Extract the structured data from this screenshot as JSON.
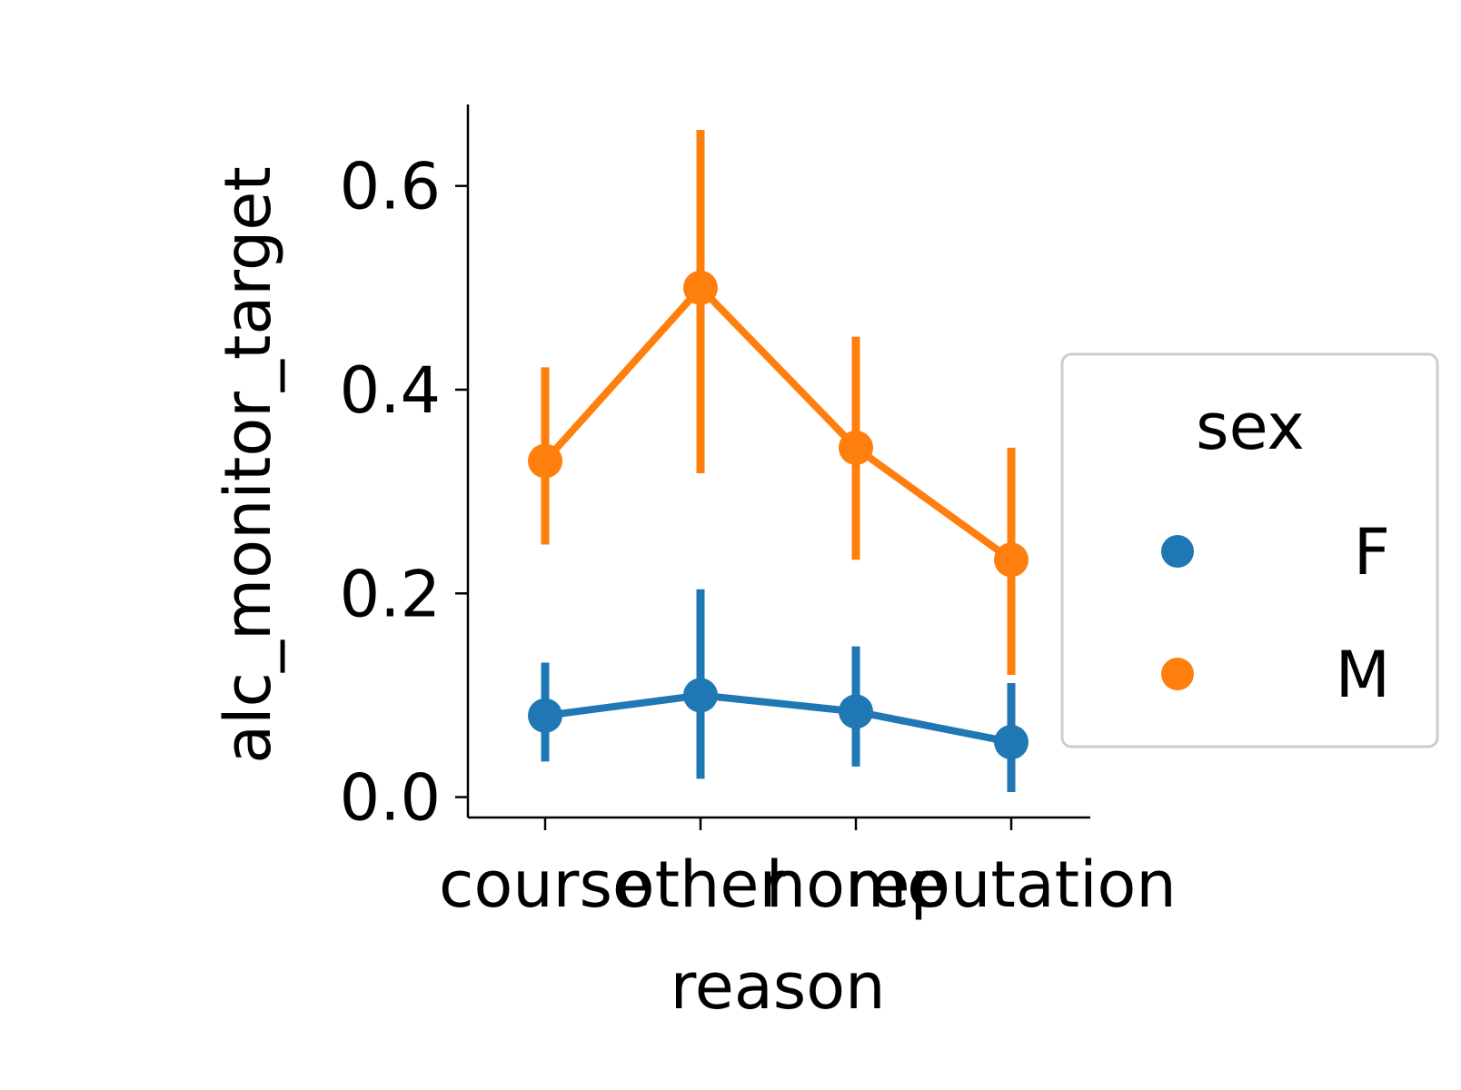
{
  "chart_data": {
    "type": "line",
    "xlabel": "reason",
    "ylabel": "alc_monitor_target",
    "categories": [
      "course",
      "other",
      "home",
      "reputation"
    ],
    "ylim": [
      -0.02,
      0.68
    ],
    "yticks": [
      0.0,
      0.2,
      0.4,
      0.6
    ],
    "ytick_labels": [
      "0.0",
      "0.2",
      "0.4",
      "0.6"
    ],
    "grid": false,
    "legend": {
      "title": "sex",
      "placement": "right"
    },
    "series": [
      {
        "name": "F",
        "color": "#1f77b4",
        "values": [
          0.08,
          0.1,
          0.084,
          0.054
        ],
        "ci_low": [
          0.035,
          0.018,
          0.03,
          0.005
        ],
        "ci_high": [
          0.132,
          0.204,
          0.148,
          0.112
        ]
      },
      {
        "name": "M",
        "color": "#ff7f0e",
        "values": [
          0.33,
          0.5,
          0.343,
          0.233
        ],
        "ci_low": [
          0.248,
          0.318,
          0.233,
          0.12
        ],
        "ci_high": [
          0.422,
          0.655,
          0.452,
          0.343
        ]
      }
    ]
  }
}
